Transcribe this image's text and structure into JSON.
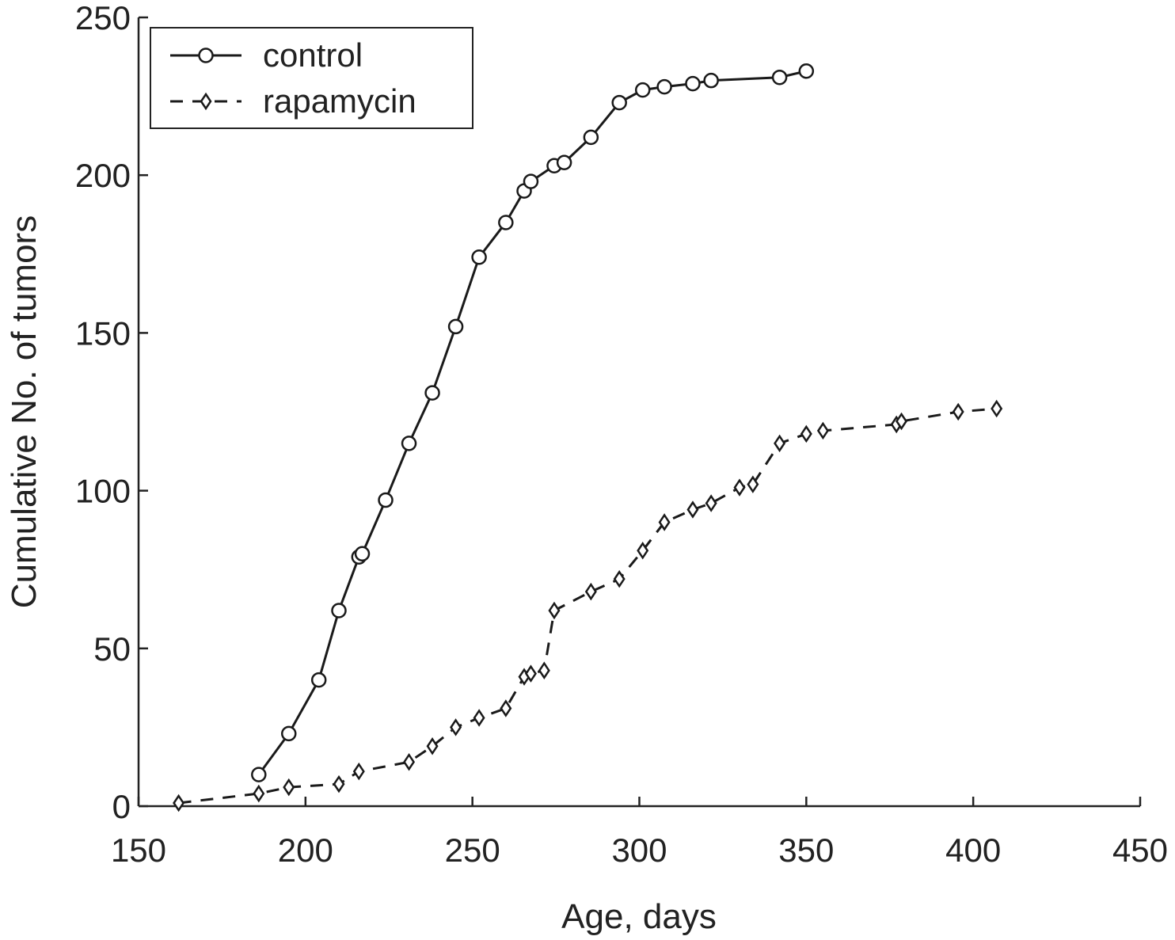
{
  "chart_data": {
    "type": "line",
    "title": "",
    "xlabel": "Age, days",
    "ylabel": "Cumulative No. of tumors",
    "xlim": [
      150,
      450
    ],
    "ylim": [
      0,
      250
    ],
    "xticks": [
      150,
      200,
      250,
      300,
      350,
      400,
      450
    ],
    "yticks": [
      0,
      50,
      100,
      150,
      200,
      250
    ],
    "grid": false,
    "legend_placement": "top-left",
    "series": [
      {
        "name": "control",
        "line_style": "solid",
        "marker": "circle",
        "color": "#1a1a1a",
        "x": [
          186,
          195,
          204,
          210,
          216,
          217,
          224,
          231,
          238,
          245,
          252,
          260,
          265.5,
          267.5,
          274.5,
          277.5,
          285.5,
          294,
          301,
          307.5,
          316,
          321.5,
          342,
          350
        ],
        "y": [
          10,
          23,
          40,
          62,
          79,
          80,
          97,
          115,
          131,
          152,
          174,
          185,
          195,
          198,
          203,
          204,
          212,
          223,
          227,
          228,
          229,
          230,
          231,
          233
        ]
      },
      {
        "name": "rapamycin",
        "line_style": "dashed",
        "marker": "diamond",
        "color": "#1a1a1a",
        "x": [
          162,
          186,
          195,
          210,
          216,
          231,
          238,
          245,
          252,
          260,
          265.5,
          267.5,
          271.5,
          274.5,
          285.5,
          294,
          301,
          307.5,
          316,
          321.5,
          330,
          334,
          342,
          350,
          355,
          377,
          378.5,
          395.5,
          407
        ],
        "y": [
          1,
          4,
          6,
          7,
          11,
          14,
          19,
          25,
          28,
          31,
          41,
          42,
          43,
          62,
          68,
          72,
          81,
          90,
          94,
          96,
          101,
          102,
          115,
          118,
          119,
          121,
          122,
          125,
          126
        ]
      }
    ]
  }
}
